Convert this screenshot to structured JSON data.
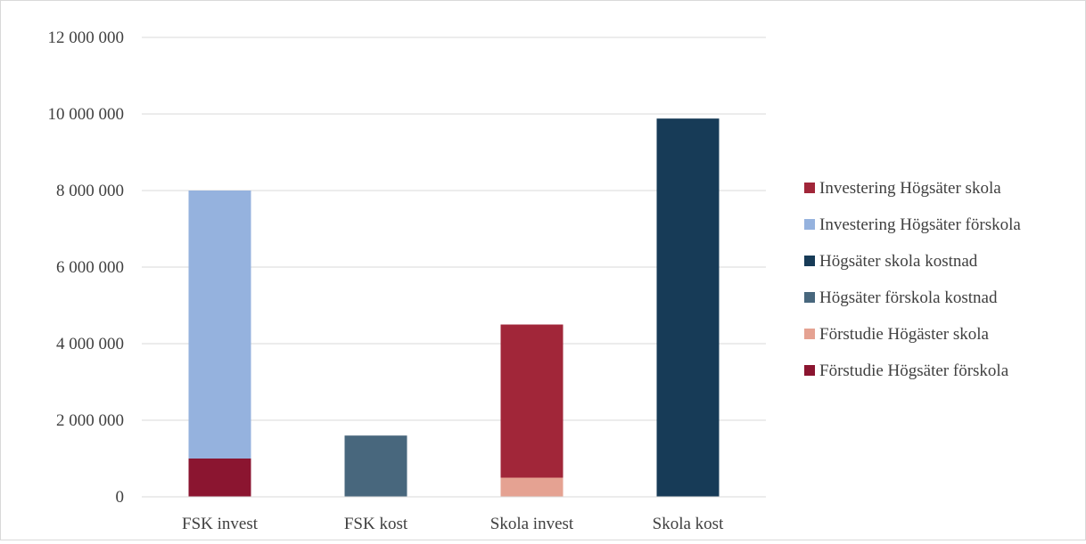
{
  "chart_data": {
    "type": "bar",
    "stacked": true,
    "categories": [
      "FSK invest",
      "FSK kost",
      "Skola invest",
      "Skola kost"
    ],
    "ylim": [
      0,
      12000000
    ],
    "yticks": [
      0,
      2000000,
      4000000,
      6000000,
      8000000,
      10000000,
      12000000
    ],
    "ytick_labels": [
      "0",
      "2 000 000",
      "4 000 000",
      "6 000 000",
      "8 000 000",
      "10 000 000",
      "12 000 000"
    ],
    "grid": true,
    "legend_position": "right",
    "series": [
      {
        "name": "Förstudie Högsäter förskola",
        "color": "#8b1530",
        "values": [
          1000000,
          0,
          0,
          0
        ]
      },
      {
        "name": "Förstudie Högäster skola",
        "color": "#e5a292",
        "values": [
          0,
          0,
          500000,
          0
        ]
      },
      {
        "name": "Högsäter förskola kostnad",
        "color": "#48677d",
        "values": [
          0,
          1600000,
          0,
          0
        ]
      },
      {
        "name": "Högsäter skola kostnad",
        "color": "#173b57",
        "values": [
          0,
          0,
          0,
          9880000
        ]
      },
      {
        "name": "Investering Högsäter förskola",
        "color": "#95b2de",
        "values": [
          7000000,
          0,
          0,
          0
        ]
      },
      {
        "name": "Investering Högsäter skola",
        "color": "#a12639",
        "values": [
          0,
          0,
          4000000,
          0
        ]
      }
    ]
  }
}
